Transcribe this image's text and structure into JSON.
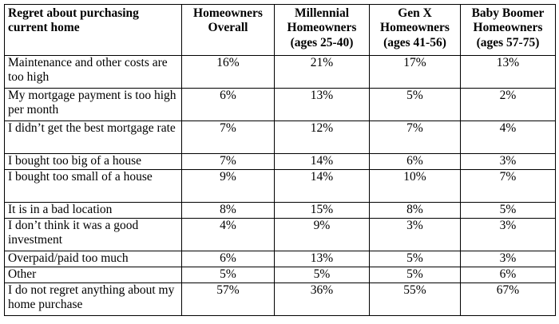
{
  "table": {
    "headers": [
      "Regret about purchasing current home",
      "Homeowners Overall",
      "Millennial Homeowners (ages 25-40)",
      "Gen X Homeowners (ages 41-56)",
      "Baby Boomer Homeowners (ages 57-75)"
    ],
    "rows": [
      {
        "label": "Maintenance and other costs are too high",
        "values": [
          "16%",
          "21%",
          "17%",
          "13%"
        ]
      },
      {
        "label": "My mortgage payment is too high per month",
        "values": [
          "6%",
          "13%",
          "5%",
          "2%"
        ]
      },
      {
        "label": "I didn’t get the best mortgage rate",
        "values": [
          "7%",
          "12%",
          "7%",
          "4%"
        ]
      },
      {
        "label": "I bought too big of a house",
        "values": [
          "7%",
          "14%",
          "6%",
          "3%"
        ]
      },
      {
        "label": "I bought too small of a house",
        "values": [
          "9%",
          "14%",
          "10%",
          "7%"
        ]
      },
      {
        "label": "It is in a bad location",
        "values": [
          "8%",
          "15%",
          "8%",
          "5%"
        ]
      },
      {
        "label": "I don’t think it was a good investment",
        "values": [
          "4%",
          "9%",
          "3%",
          "3%"
        ]
      },
      {
        "label": "Overpaid/paid too much",
        "values": [
          "6%",
          "13%",
          "5%",
          "3%"
        ]
      },
      {
        "label": "Other",
        "values": [
          "5%",
          "5%",
          "5%",
          "6%"
        ]
      },
      {
        "label": "I do not regret anything about my home purchase",
        "values": [
          "57%",
          "36%",
          "55%",
          "67%"
        ]
      }
    ]
  }
}
